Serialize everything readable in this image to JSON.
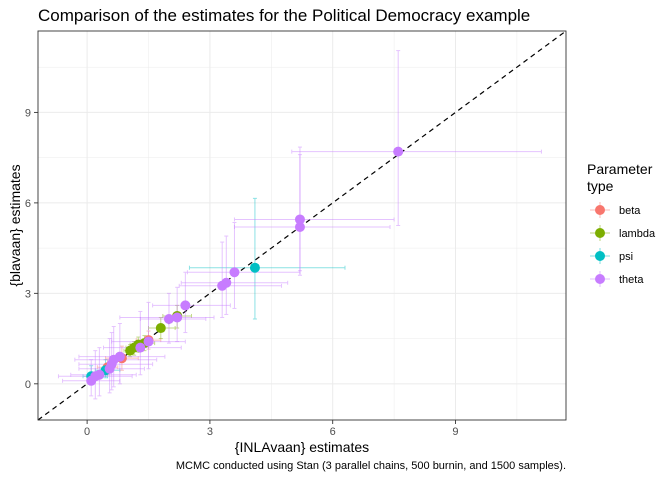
{
  "chart_data": {
    "type": "scatter",
    "title": "Comparison of the estimates for the Political Democracy example",
    "xlabel": "{INLAvaan} estimates",
    "ylabel": "{blavaan} estimates",
    "caption": "MCMC conducted using Stan (3 parallel chains, 500 burnin, and 1500 samples).",
    "xlim": [
      -1.2,
      11.7
    ],
    "ylim": [
      -1.2,
      11.7
    ],
    "xticks": [
      0,
      3,
      6,
      9
    ],
    "yticks": [
      0,
      3,
      6,
      9
    ],
    "xtick_labels": [
      "0",
      "3",
      "6",
      "9"
    ],
    "ytick_labels": [
      "0",
      "3",
      "6",
      "9"
    ],
    "reference_line": "y = x (dashed)",
    "grid": true,
    "legend": {
      "title_lines": [
        "Parameter",
        "type"
      ],
      "position": "right"
    },
    "series": [
      {
        "name": "beta",
        "color": "#F8766D",
        "points": [
          {
            "x": 0.85,
            "y": 0.85,
            "xlo": 0.45,
            "xhi": 1.25,
            "ylo": 0.45,
            "yhi": 1.25
          },
          {
            "x": 1.5,
            "y": 1.45,
            "xlo": 1.2,
            "xhi": 1.8,
            "ylo": 1.15,
            "yhi": 1.75
          },
          {
            "x": 0.5,
            "y": 0.55,
            "xlo": 0.25,
            "xhi": 0.75,
            "ylo": 0.3,
            "yhi": 0.8
          }
        ]
      },
      {
        "name": "lambda",
        "color": "#7CAE00",
        "points": [
          {
            "x": 1.05,
            "y": 1.1,
            "xlo": 0.9,
            "xhi": 1.25,
            "ylo": 0.9,
            "yhi": 1.3
          },
          {
            "x": 1.25,
            "y": 1.3,
            "xlo": 1.05,
            "xhi": 1.45,
            "ylo": 1.05,
            "yhi": 1.55
          },
          {
            "x": 1.8,
            "y": 1.85,
            "xlo": 1.5,
            "xhi": 2.15,
            "ylo": 1.5,
            "yhi": 2.2
          },
          {
            "x": 2.2,
            "y": 2.25,
            "xlo": 1.85,
            "xhi": 2.55,
            "ylo": 1.85,
            "yhi": 2.6
          },
          {
            "x": 1.15,
            "y": 1.2,
            "xlo": 0.95,
            "xhi": 1.35,
            "ylo": 0.95,
            "yhi": 1.4
          },
          {
            "x": 1.4,
            "y": 1.35,
            "xlo": 1.15,
            "xhi": 1.65,
            "ylo": 1.1,
            "yhi": 1.6
          }
        ]
      },
      {
        "name": "psi",
        "color": "#00BFC4",
        "points": [
          {
            "x": 4.1,
            "y": 3.85,
            "xlo": 2.5,
            "xhi": 6.3,
            "ylo": 2.15,
            "yhi": 6.15
          },
          {
            "x": 0.1,
            "y": 0.25,
            "xlo": -0.1,
            "xhi": 0.5,
            "ylo": 0.05,
            "yhi": 0.6
          },
          {
            "x": 0.45,
            "y": 0.45,
            "xlo": 0.2,
            "xhi": 0.8,
            "ylo": 0.2,
            "yhi": 0.8
          }
        ]
      },
      {
        "name": "theta",
        "color": "#C77CFF",
        "points": [
          {
            "x": 7.6,
            "y": 7.7,
            "xlo": 5.0,
            "xhi": 11.1,
            "ylo": 5.25,
            "yhi": 11.05
          },
          {
            "x": 5.2,
            "y": 5.45,
            "xlo": 3.6,
            "xhi": 7.5,
            "ylo": 3.75,
            "yhi": 7.85
          },
          {
            "x": 5.2,
            "y": 5.2,
            "xlo": 3.6,
            "xhi": 7.4,
            "ylo": 3.6,
            "yhi": 7.6
          },
          {
            "x": 3.6,
            "y": 3.7,
            "xlo": 2.45,
            "xhi": 5.2,
            "ylo": 2.5,
            "yhi": 5.35
          },
          {
            "x": 3.4,
            "y": 3.35,
            "xlo": 2.3,
            "xhi": 4.9,
            "ylo": 2.3,
            "yhi": 4.9
          },
          {
            "x": 3.3,
            "y": 3.25,
            "xlo": 2.25,
            "xhi": 4.75,
            "ylo": 2.2,
            "yhi": 4.7
          },
          {
            "x": 2.4,
            "y": 2.6,
            "xlo": 1.6,
            "xhi": 3.5,
            "ylo": 1.7,
            "yhi": 3.7
          },
          {
            "x": 2.2,
            "y": 2.2,
            "xlo": 0.8,
            "xhi": 3.1,
            "ylo": 1.4,
            "yhi": 3.2
          },
          {
            "x": 2.0,
            "y": 2.15,
            "xlo": 1.3,
            "xhi": 2.9,
            "ylo": 1.35,
            "yhi": 3.0
          },
          {
            "x": 1.5,
            "y": 1.4,
            "xlo": 0.6,
            "xhi": 2.4,
            "ylo": 0.5,
            "yhi": 2.7
          },
          {
            "x": 1.3,
            "y": 1.2,
            "xlo": 0.4,
            "xhi": 2.3,
            "ylo": 0.3,
            "yhi": 2.4
          },
          {
            "x": 0.8,
            "y": 0.9,
            "xlo": -0.2,
            "xhi": 1.9,
            "ylo": 0.0,
            "yhi": 2.0
          },
          {
            "x": 0.65,
            "y": 0.8,
            "xlo": -0.3,
            "xhi": 1.7,
            "ylo": -0.1,
            "yhi": 1.9
          },
          {
            "x": 0.6,
            "y": 0.65,
            "xlo": -0.2,
            "xhi": 1.6,
            "ylo": -0.2,
            "yhi": 1.7
          },
          {
            "x": 0.55,
            "y": 0.5,
            "xlo": -0.2,
            "xhi": 1.4,
            "ylo": -0.3,
            "yhi": 1.5
          },
          {
            "x": 0.3,
            "y": 0.3,
            "xlo": -0.4,
            "xhi": 1.2,
            "ylo": -0.4,
            "yhi": 1.2
          },
          {
            "x": 0.2,
            "y": 0.25,
            "xlo": -0.7,
            "xhi": 1.1,
            "ylo": -0.5,
            "yhi": 1.1
          },
          {
            "x": 0.1,
            "y": 0.1,
            "xlo": -0.6,
            "xhi": 0.8,
            "ylo": -0.4,
            "yhi": 0.8
          }
        ]
      }
    ]
  }
}
